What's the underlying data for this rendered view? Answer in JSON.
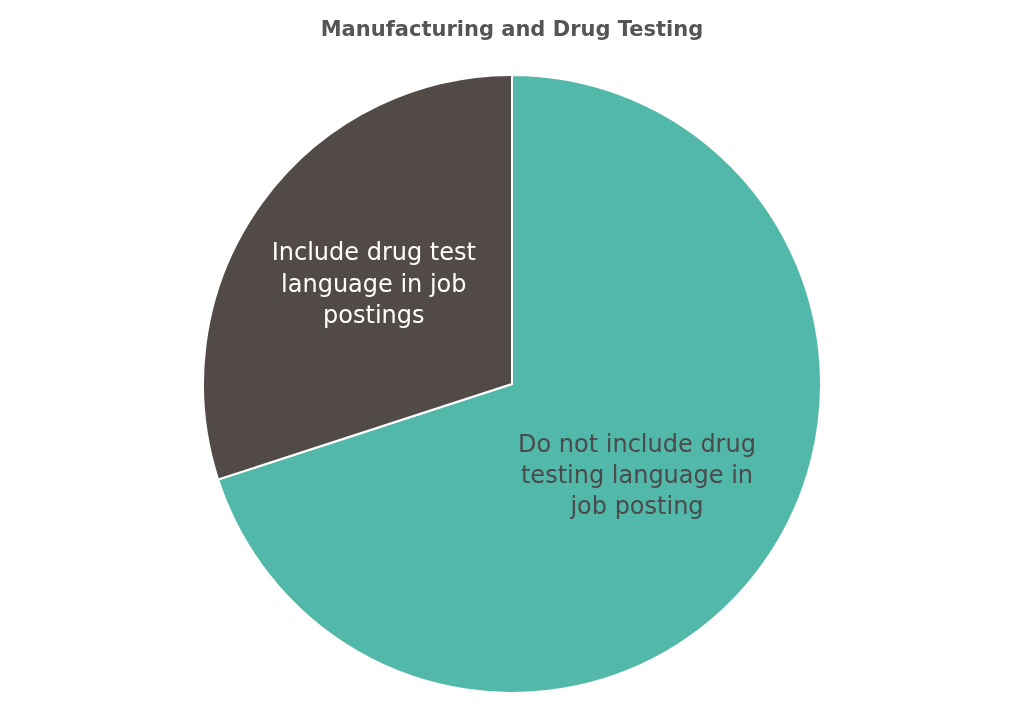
{
  "chart_data": {
    "type": "pie",
    "title": "Manufacturing and Drug Testing",
    "categories": [
      "Do not include drug testing language in job posting",
      "Include drug test language in job postings"
    ],
    "values": [
      70,
      30
    ],
    "colors": [
      "#52b8aa",
      "#524a46"
    ],
    "legend": false
  }
}
